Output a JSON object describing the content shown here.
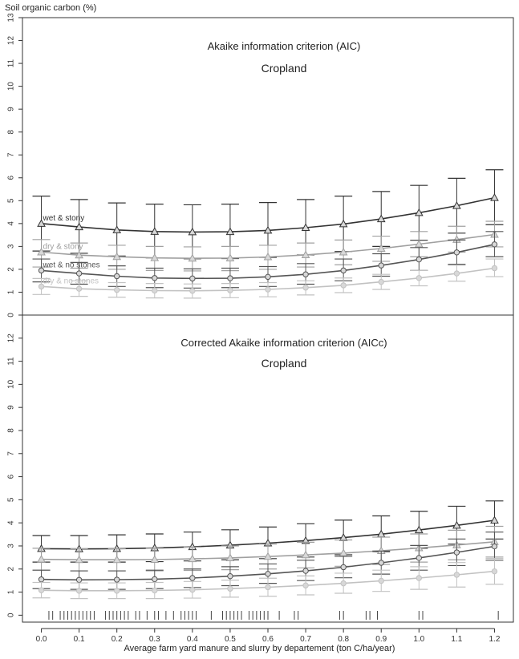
{
  "figure": {
    "ylabel": "Soil organic carbon (%)",
    "xlabel": "Average farm yard manure and slurry by departement (ton C/ha/year)"
  },
  "chart_data": [
    {
      "type": "line",
      "title": "Akaike information criterion (AIC)",
      "subtitle": "Cropland",
      "xlabel": "Average farm yard manure and slurry by departement (ton C/ha/year)",
      "ylabel": "Soil organic carbon (%)",
      "x": [
        0.0,
        0.1,
        0.2,
        0.3,
        0.4,
        0.5,
        0.6,
        0.7,
        0.8,
        0.9,
        1.0,
        1.1,
        1.2
      ],
      "xlim": [
        -0.05,
        1.25
      ],
      "ylim": [
        0,
        13
      ],
      "yticks": [
        0,
        1,
        2,
        3,
        4,
        5,
        6,
        7,
        8,
        9,
        10,
        11,
        12,
        13
      ],
      "grid": false,
      "series": [
        {
          "name": "wet & stony",
          "color": "#333333",
          "marker": "triangle",
          "values": [
            4.0,
            3.85,
            3.72,
            3.65,
            3.63,
            3.64,
            3.7,
            3.82,
            3.98,
            4.2,
            4.47,
            4.78,
            5.13
          ],
          "upper": [
            5.2,
            5.05,
            4.9,
            4.85,
            4.82,
            4.85,
            4.92,
            5.05,
            5.2,
            5.4,
            5.67,
            5.98,
            6.35
          ],
          "lower": [
            2.8,
            2.7,
            2.58,
            2.5,
            2.46,
            2.47,
            2.52,
            2.63,
            2.78,
            3.0,
            3.27,
            3.58,
            3.95
          ]
        },
        {
          "name": "dry & stony",
          "color": "#a0a0a0",
          "marker": "triangle",
          "values": [
            2.75,
            2.62,
            2.55,
            2.5,
            2.48,
            2.49,
            2.54,
            2.63,
            2.75,
            2.91,
            3.1,
            3.3,
            3.52
          ],
          "upper": [
            3.3,
            3.15,
            3.05,
            3.0,
            2.98,
            3.0,
            3.05,
            3.15,
            3.28,
            3.45,
            3.65,
            3.88,
            4.1
          ],
          "lower": [
            2.1,
            2.05,
            2.0,
            1.95,
            1.93,
            1.94,
            2.0,
            2.1,
            2.2,
            2.35,
            2.55,
            2.75,
            2.98
          ]
        },
        {
          "name": "wet & no stones",
          "color": "#555555",
          "marker": "circle",
          "values": [
            1.95,
            1.82,
            1.7,
            1.62,
            1.6,
            1.61,
            1.67,
            1.78,
            1.95,
            2.17,
            2.43,
            2.74,
            3.09
          ],
          "upper": [
            2.45,
            2.3,
            2.15,
            2.05,
            2.02,
            2.05,
            2.12,
            2.25,
            2.45,
            2.68,
            2.95,
            3.28,
            3.65
          ],
          "lower": [
            1.45,
            1.35,
            1.25,
            1.2,
            1.18,
            1.2,
            1.25,
            1.35,
            1.5,
            1.7,
            1.95,
            2.22,
            2.55
          ]
        },
        {
          "name": "dry & no stones",
          "color": "#c2c2c2",
          "marker": "circle",
          "values": [
            1.25,
            1.15,
            1.1,
            1.07,
            1.06,
            1.08,
            1.12,
            1.2,
            1.3,
            1.45,
            1.62,
            1.82,
            2.05
          ],
          "upper": [
            1.6,
            1.5,
            1.42,
            1.38,
            1.36,
            1.38,
            1.42,
            1.5,
            1.62,
            1.78,
            1.95,
            2.18,
            2.45
          ],
          "lower": [
            0.9,
            0.82,
            0.78,
            0.75,
            0.74,
            0.76,
            0.8,
            0.88,
            0.98,
            1.12,
            1.28,
            1.48,
            1.68
          ]
        }
      ],
      "annotations": [
        "wet & stony",
        "dry & stony",
        "wet & no stones",
        "dry & no stones"
      ]
    },
    {
      "type": "line",
      "title": "Corrected Akaike information criterion (AICc)",
      "subtitle": "Cropland",
      "xlabel": "Average farm yard manure and slurry by departement (ton C/ha/year)",
      "ylabel": "Soil organic carbon (%)",
      "x": [
        0.0,
        0.1,
        0.2,
        0.3,
        0.4,
        0.5,
        0.6,
        0.7,
        0.8,
        0.9,
        1.0,
        1.1,
        1.2
      ],
      "xticks": [
        "0.0",
        "0.1",
        "0.2",
        "0.3",
        "0.4",
        "0.5",
        "0.6",
        "0.7",
        "0.8",
        "0.9",
        "1.0",
        "1.1",
        "1.2"
      ],
      "xlim": [
        -0.05,
        1.25
      ],
      "ylim": [
        -0.3,
        13
      ],
      "yticks": [
        0,
        1,
        2,
        3,
        4,
        5,
        6,
        7,
        8,
        9,
        10,
        11,
        12
      ],
      "grid": false,
      "series": [
        {
          "name": "wet & stony",
          "color": "#333333",
          "marker": "triangle",
          "values": [
            2.88,
            2.87,
            2.88,
            2.91,
            2.96,
            3.03,
            3.12,
            3.23,
            3.36,
            3.51,
            3.69,
            3.89,
            4.11
          ],
          "upper": [
            3.45,
            3.45,
            3.48,
            3.52,
            3.6,
            3.7,
            3.82,
            3.96,
            4.12,
            4.3,
            4.5,
            4.72,
            4.95
          ],
          "lower": [
            2.3,
            2.3,
            2.3,
            2.32,
            2.35,
            2.4,
            2.45,
            2.52,
            2.62,
            2.75,
            2.9,
            3.08,
            3.3
          ]
        },
        {
          "name": "dry & stony",
          "color": "#a0a0a0",
          "marker": "triangle",
          "values": [
            2.42,
            2.4,
            2.4,
            2.41,
            2.44,
            2.48,
            2.54,
            2.61,
            2.69,
            2.79,
            2.91,
            3.04,
            3.18
          ],
          "upper": [
            2.9,
            2.88,
            2.88,
            2.9,
            2.95,
            3.0,
            3.08,
            3.16,
            3.26,
            3.38,
            3.52,
            3.68,
            3.85
          ],
          "lower": [
            1.95,
            1.92,
            1.92,
            1.92,
            1.94,
            1.97,
            2.0,
            2.05,
            2.12,
            2.2,
            2.3,
            2.4,
            2.52
          ]
        },
        {
          "name": "wet & no stones",
          "color": "#555555",
          "marker": "circle",
          "values": [
            1.55,
            1.53,
            1.54,
            1.56,
            1.61,
            1.69,
            1.79,
            1.92,
            2.08,
            2.27,
            2.48,
            2.72,
            2.98
          ],
          "upper": [
            1.95,
            1.92,
            1.92,
            1.95,
            2.0,
            2.1,
            2.22,
            2.38,
            2.55,
            2.78,
            3.02,
            3.3,
            3.6
          ],
          "lower": [
            1.15,
            1.12,
            1.12,
            1.15,
            1.2,
            1.28,
            1.38,
            1.5,
            1.62,
            1.78,
            1.95,
            2.15,
            2.38
          ]
        },
        {
          "name": "dry & no stones",
          "color": "#c2c2c2",
          "marker": "circle",
          "values": [
            1.08,
            1.06,
            1.06,
            1.07,
            1.1,
            1.15,
            1.21,
            1.29,
            1.38,
            1.49,
            1.61,
            1.75,
            1.9
          ],
          "upper": [
            1.42,
            1.4,
            1.4,
            1.42,
            1.46,
            1.52,
            1.6,
            1.7,
            1.82,
            1.95,
            2.1,
            2.28,
            2.46
          ],
          "lower": [
            0.75,
            0.72,
            0.72,
            0.72,
            0.74,
            0.78,
            0.82,
            0.88,
            0.95,
            1.03,
            1.12,
            1.22,
            1.34
          ]
        }
      ],
      "rug": [
        0.02,
        0.03,
        0.05,
        0.06,
        0.07,
        0.08,
        0.09,
        0.1,
        0.11,
        0.12,
        0.13,
        0.14,
        0.17,
        0.18,
        0.19,
        0.2,
        0.21,
        0.22,
        0.23,
        0.25,
        0.26,
        0.28,
        0.3,
        0.31,
        0.33,
        0.35,
        0.37,
        0.38,
        0.39,
        0.4,
        0.41,
        0.45,
        0.48,
        0.49,
        0.5,
        0.51,
        0.52,
        0.53,
        0.55,
        0.56,
        0.57,
        0.58,
        0.59,
        0.6,
        0.63,
        0.67,
        0.68,
        0.79,
        0.8,
        0.86,
        0.87,
        0.89,
        1.0,
        1.01,
        1.21
      ]
    }
  ]
}
